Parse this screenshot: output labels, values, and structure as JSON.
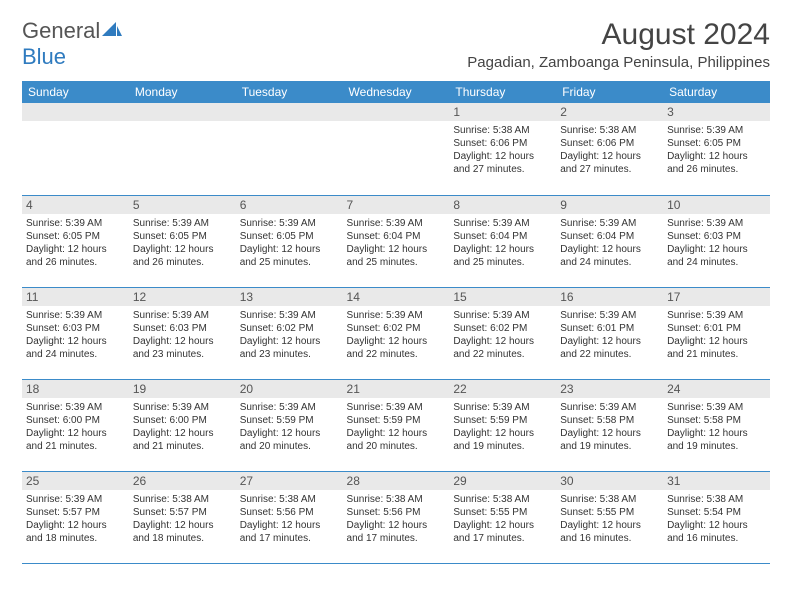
{
  "brand": {
    "name_gray": "General",
    "name_blue": "Blue"
  },
  "title": "August 2024",
  "location": "Pagadian, Zamboanga Peninsula, Philippines",
  "colors": {
    "header_bg": "#3b8bc9",
    "header_text": "#ffffff",
    "daynum_bg": "#e9e9e9",
    "row_border": "#3b8bc9",
    "brand_gray": "#555555",
    "brand_blue": "#2f7bbf"
  },
  "day_headers": [
    "Sunday",
    "Monday",
    "Tuesday",
    "Wednesday",
    "Thursday",
    "Friday",
    "Saturday"
  ],
  "weeks": [
    [
      null,
      null,
      null,
      null,
      {
        "n": "1",
        "sr": "5:38 AM",
        "ss": "6:06 PM",
        "dl": "12 hours and 27 minutes."
      },
      {
        "n": "2",
        "sr": "5:38 AM",
        "ss": "6:06 PM",
        "dl": "12 hours and 27 minutes."
      },
      {
        "n": "3",
        "sr": "5:39 AM",
        "ss": "6:05 PM",
        "dl": "12 hours and 26 minutes."
      }
    ],
    [
      {
        "n": "4",
        "sr": "5:39 AM",
        "ss": "6:05 PM",
        "dl": "12 hours and 26 minutes."
      },
      {
        "n": "5",
        "sr": "5:39 AM",
        "ss": "6:05 PM",
        "dl": "12 hours and 26 minutes."
      },
      {
        "n": "6",
        "sr": "5:39 AM",
        "ss": "6:05 PM",
        "dl": "12 hours and 25 minutes."
      },
      {
        "n": "7",
        "sr": "5:39 AM",
        "ss": "6:04 PM",
        "dl": "12 hours and 25 minutes."
      },
      {
        "n": "8",
        "sr": "5:39 AM",
        "ss": "6:04 PM",
        "dl": "12 hours and 25 minutes."
      },
      {
        "n": "9",
        "sr": "5:39 AM",
        "ss": "6:04 PM",
        "dl": "12 hours and 24 minutes."
      },
      {
        "n": "10",
        "sr": "5:39 AM",
        "ss": "6:03 PM",
        "dl": "12 hours and 24 minutes."
      }
    ],
    [
      {
        "n": "11",
        "sr": "5:39 AM",
        "ss": "6:03 PM",
        "dl": "12 hours and 24 minutes."
      },
      {
        "n": "12",
        "sr": "5:39 AM",
        "ss": "6:03 PM",
        "dl": "12 hours and 23 minutes."
      },
      {
        "n": "13",
        "sr": "5:39 AM",
        "ss": "6:02 PM",
        "dl": "12 hours and 23 minutes."
      },
      {
        "n": "14",
        "sr": "5:39 AM",
        "ss": "6:02 PM",
        "dl": "12 hours and 22 minutes."
      },
      {
        "n": "15",
        "sr": "5:39 AM",
        "ss": "6:02 PM",
        "dl": "12 hours and 22 minutes."
      },
      {
        "n": "16",
        "sr": "5:39 AM",
        "ss": "6:01 PM",
        "dl": "12 hours and 22 minutes."
      },
      {
        "n": "17",
        "sr": "5:39 AM",
        "ss": "6:01 PM",
        "dl": "12 hours and 21 minutes."
      }
    ],
    [
      {
        "n": "18",
        "sr": "5:39 AM",
        "ss": "6:00 PM",
        "dl": "12 hours and 21 minutes."
      },
      {
        "n": "19",
        "sr": "5:39 AM",
        "ss": "6:00 PM",
        "dl": "12 hours and 21 minutes."
      },
      {
        "n": "20",
        "sr": "5:39 AM",
        "ss": "5:59 PM",
        "dl": "12 hours and 20 minutes."
      },
      {
        "n": "21",
        "sr": "5:39 AM",
        "ss": "5:59 PM",
        "dl": "12 hours and 20 minutes."
      },
      {
        "n": "22",
        "sr": "5:39 AM",
        "ss": "5:59 PM",
        "dl": "12 hours and 19 minutes."
      },
      {
        "n": "23",
        "sr": "5:39 AM",
        "ss": "5:58 PM",
        "dl": "12 hours and 19 minutes."
      },
      {
        "n": "24",
        "sr": "5:39 AM",
        "ss": "5:58 PM",
        "dl": "12 hours and 19 minutes."
      }
    ],
    [
      {
        "n": "25",
        "sr": "5:39 AM",
        "ss": "5:57 PM",
        "dl": "12 hours and 18 minutes."
      },
      {
        "n": "26",
        "sr": "5:38 AM",
        "ss": "5:57 PM",
        "dl": "12 hours and 18 minutes."
      },
      {
        "n": "27",
        "sr": "5:38 AM",
        "ss": "5:56 PM",
        "dl": "12 hours and 17 minutes."
      },
      {
        "n": "28",
        "sr": "5:38 AM",
        "ss": "5:56 PM",
        "dl": "12 hours and 17 minutes."
      },
      {
        "n": "29",
        "sr": "5:38 AM",
        "ss": "5:55 PM",
        "dl": "12 hours and 17 minutes."
      },
      {
        "n": "30",
        "sr": "5:38 AM",
        "ss": "5:55 PM",
        "dl": "12 hours and 16 minutes."
      },
      {
        "n": "31",
        "sr": "5:38 AM",
        "ss": "5:54 PM",
        "dl": "12 hours and 16 minutes."
      }
    ]
  ],
  "labels": {
    "sunrise": "Sunrise: ",
    "sunset": "Sunset: ",
    "daylight": "Daylight: "
  }
}
